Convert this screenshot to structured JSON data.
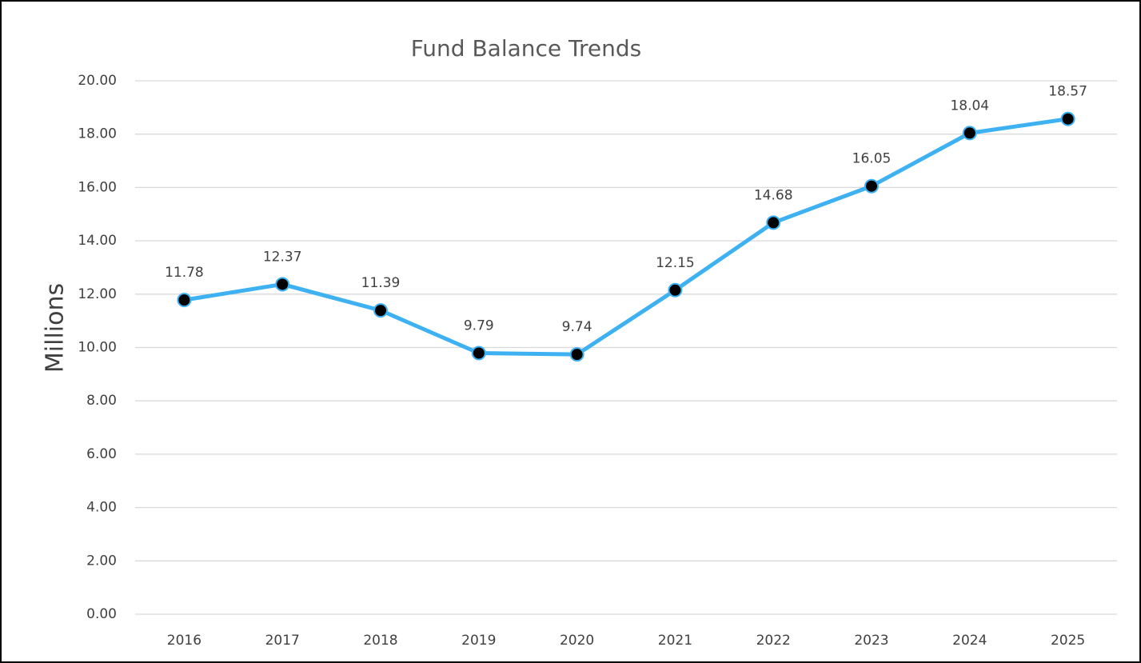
{
  "chart_data": {
    "type": "line",
    "title": "Fund Balance Trends",
    "y_label": "Millions",
    "categories": [
      "2016",
      "2017",
      "2018",
      "2019",
      "2020",
      "2021",
      "2022",
      "2023",
      "2024",
      "2025"
    ],
    "values": [
      11.78,
      12.37,
      11.39,
      9.79,
      9.74,
      12.15,
      14.68,
      16.05,
      18.04,
      18.57
    ],
    "color": "#3db1f2",
    "marker_color": "#000000",
    "ylim": [
      0,
      20
    ],
    "yticks": [
      {
        "value": 0,
        "label": "0.00"
      },
      {
        "value": 2,
        "label": "2.00"
      },
      {
        "value": 4,
        "label": "4.00"
      },
      {
        "value": 6,
        "label": "6.00"
      },
      {
        "value": 8,
        "label": "8.00"
      },
      {
        "value": 10,
        "label": "10.00"
      },
      {
        "value": 12,
        "label": "12.00"
      },
      {
        "value": 14,
        "label": "14.00"
      },
      {
        "value": 16,
        "label": "16.00"
      },
      {
        "value": 18,
        "label": "18.00"
      },
      {
        "value": 20,
        "label": "20.00"
      }
    ],
    "grid": true
  }
}
